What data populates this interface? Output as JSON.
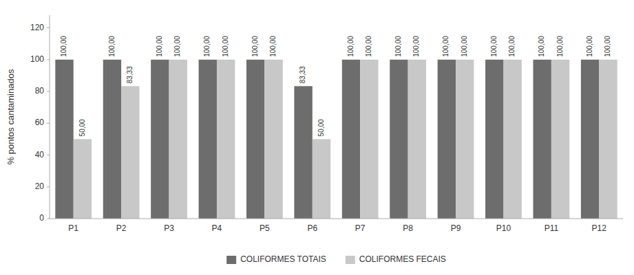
{
  "chart_data": {
    "type": "bar",
    "y_label": "% pontos cantaminados",
    "categories": [
      "P1",
      "P2",
      "P3",
      "P4",
      "P5",
      "P6",
      "P7",
      "P8",
      "P9",
      "P10",
      "P11",
      "P12"
    ],
    "series": [
      {
        "name": "COLIFORMES TOTAIS",
        "color": "#6d6d6d",
        "values": [
          100.0,
          100.0,
          100.0,
          100.0,
          100.0,
          83.33,
          100.0,
          100.0,
          100.0,
          100.0,
          100.0,
          100.0
        ],
        "value_labels": [
          "100,00",
          "100,00",
          "100,00",
          "100,00",
          "100,00",
          "83,33",
          "100,00",
          "100,00",
          "100,00",
          "100,00",
          "100,00",
          "100,00"
        ]
      },
      {
        "name": "COLIFORMES FECAIS",
        "color": "#c8c8c8",
        "values": [
          50.0,
          83.33,
          100.0,
          100.0,
          100.0,
          50.0,
          100.0,
          100.0,
          100.0,
          100.0,
          100.0,
          100.0
        ],
        "value_labels": [
          "50,00",
          "83,33",
          "100,00",
          "100,00",
          "100,00",
          "50,00",
          "100,00",
          "100,00",
          "100,00",
          "100,00",
          "100,00",
          "100,00"
        ]
      }
    ],
    "ylim": [
      0,
      128
    ],
    "yticks": [
      0,
      20,
      40,
      60,
      80,
      100,
      120
    ],
    "grid": false,
    "legend": "bottom",
    "data_labels": true
  }
}
